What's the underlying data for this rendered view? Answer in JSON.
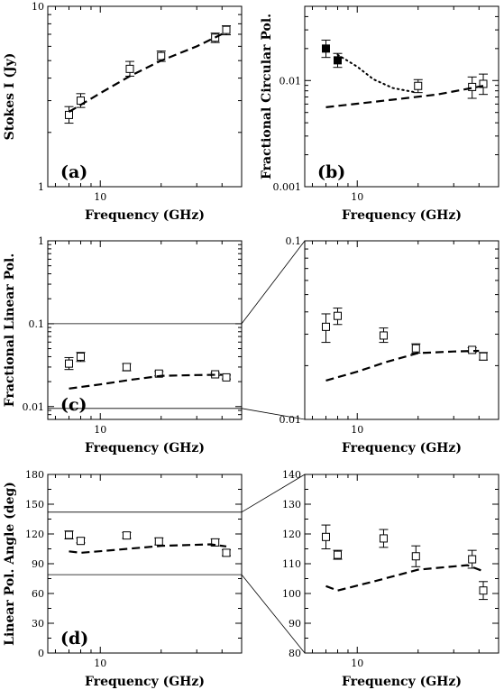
{
  "chart_data": [
    {
      "id": "a",
      "type": "scatter",
      "panel_label": "(a)",
      "xlabel": "Frequency (GHz)",
      "ylabel": "Stokes I (Jy)",
      "xscale": "log",
      "yscale": "log",
      "xlim": [
        5.5,
        50
      ],
      "ylim": [
        1,
        10
      ],
      "x_ticks": [
        {
          "value": 10,
          "label": "10"
        }
      ],
      "y_ticks": [
        {
          "value": 1,
          "label": "1"
        },
        {
          "value": 10,
          "label": "10"
        }
      ],
      "series": [
        {
          "style": "open-square-errorbar",
          "points": [
            {
              "x": 7,
              "y": 2.5,
              "lo": 2.25,
              "hi": 2.78
            },
            {
              "x": 8,
              "y": 3.0,
              "lo": 2.75,
              "hi": 3.28
            },
            {
              "x": 14,
              "y": 4.5,
              "lo": 4.1,
              "hi": 4.95
            },
            {
              "x": 20,
              "y": 5.3,
              "lo": 4.95,
              "hi": 5.65
            },
            {
              "x": 37,
              "y": 6.7,
              "lo": 6.3,
              "hi": 7.1
            },
            {
              "x": 42,
              "y": 7.4,
              "lo": 6.95,
              "hi": 7.8
            }
          ]
        },
        {
          "style": "dashed-line",
          "points": [
            {
              "x": 7,
              "y": 2.6
            },
            {
              "x": 10,
              "y": 3.3
            },
            {
              "x": 14,
              "y": 4.1
            },
            {
              "x": 20,
              "y": 5.0
            },
            {
              "x": 30,
              "y": 6.0
            },
            {
              "x": 42,
              "y": 7.2
            }
          ]
        }
      ]
    },
    {
      "id": "b",
      "type": "scatter",
      "panel_label": "(b)",
      "xlabel": "Frequency (GHz)",
      "ylabel": "Fractional Circular Pol.",
      "xscale": "log",
      "yscale": "log",
      "xlim": [
        5.5,
        50
      ],
      "ylim": [
        0.001,
        0.05
      ],
      "x_ticks": [
        {
          "value": 10,
          "label": "10"
        }
      ],
      "y_ticks": [
        {
          "value": 0.001,
          "label": "0.001"
        },
        {
          "value": 0.01,
          "label": "0.01"
        }
      ],
      "series": [
        {
          "style": "filled-square-errorbar",
          "points": [
            {
              "x": 7,
              "y": 0.02,
              "lo": 0.0165,
              "hi": 0.024
            },
            {
              "x": 8,
              "y": 0.0155,
              "lo": 0.0133,
              "hi": 0.018
            }
          ]
        },
        {
          "style": "open-square-errorbar",
          "points": [
            {
              "x": 20,
              "y": 0.0089,
              "lo": 0.0077,
              "hi": 0.0102
            },
            {
              "x": 37,
              "y": 0.0087,
              "lo": 0.0068,
              "hi": 0.0108
            },
            {
              "x": 42,
              "y": 0.0093,
              "lo": 0.0074,
              "hi": 0.0115
            }
          ]
        },
        {
          "style": "dotted-line",
          "points": [
            {
              "x": 8,
              "y": 0.0175
            },
            {
              "x": 10,
              "y": 0.0135
            },
            {
              "x": 12,
              "y": 0.0103
            },
            {
              "x": 15,
              "y": 0.0085
            },
            {
              "x": 19,
              "y": 0.0078
            }
          ]
        },
        {
          "style": "dashed-line",
          "points": [
            {
              "x": 7,
              "y": 0.0056
            },
            {
              "x": 15,
              "y": 0.0066
            },
            {
              "x": 25,
              "y": 0.0074
            },
            {
              "x": 42,
              "y": 0.0089
            }
          ]
        }
      ]
    },
    {
      "id": "c",
      "type": "scatter",
      "panel_label": "(c)",
      "xlabel": "Frequency (GHz)",
      "ylabel": "Fractional Linear Pol.",
      "xscale": "log",
      "yscale": "log",
      "xlim": [
        5.5,
        50
      ],
      "ylim": [
        0.007,
        1
      ],
      "x_ticks": [
        {
          "value": 10,
          "label": "10"
        }
      ],
      "y_ticks": [
        {
          "value": 0.01,
          "label": "0.01"
        },
        {
          "value": 0.1,
          "label": "0.1"
        },
        {
          "value": 1,
          "label": "1"
        }
      ],
      "zoom_band": [
        0.0095,
        0.1
      ],
      "series": [
        {
          "style": "open-square-errorbar",
          "points": [
            {
              "x": 7,
              "y": 0.033,
              "lo": 0.028,
              "hi": 0.039
            },
            {
              "x": 8,
              "y": 0.04,
              "lo": 0.035,
              "hi": 0.045
            },
            {
              "x": 13.5,
              "y": 0.03,
              "lo": 0.027,
              "hi": 0.033
            },
            {
              "x": 19.5,
              "y": 0.025,
              "lo": 0.0235,
              "hi": 0.0265
            },
            {
              "x": 37,
              "y": 0.0245,
              "lo": 0.0235,
              "hi": 0.0255
            },
            {
              "x": 42,
              "y": 0.0225,
              "lo": 0.0215,
              "hi": 0.024
            }
          ]
        },
        {
          "style": "dashed-line",
          "points": [
            {
              "x": 7,
              "y": 0.0165
            },
            {
              "x": 10,
              "y": 0.0185
            },
            {
              "x": 14,
              "y": 0.021
            },
            {
              "x": 20,
              "y": 0.0235
            },
            {
              "x": 30,
              "y": 0.024
            },
            {
              "x": 40,
              "y": 0.0242
            }
          ]
        }
      ]
    },
    {
      "id": "c-zoom",
      "type": "scatter",
      "panel_label": "",
      "xlabel": "Frequency (GHz)",
      "ylabel": "",
      "xscale": "log",
      "yscale": "log",
      "xlim": [
        5.5,
        50
      ],
      "ylim": [
        0.01,
        0.1
      ],
      "x_ticks": [
        {
          "value": 10,
          "label": "10"
        }
      ],
      "y_ticks": [
        {
          "value": 0.01,
          "label": "0.01"
        },
        {
          "value": 0.1,
          "label": "0.1"
        }
      ],
      "series": [
        {
          "style": "open-square-errorbar",
          "points": [
            {
              "x": 7,
              "y": 0.033,
              "lo": 0.027,
              "hi": 0.039
            },
            {
              "x": 8,
              "y": 0.038,
              "lo": 0.034,
              "hi": 0.042
            },
            {
              "x": 13.5,
              "y": 0.0295,
              "lo": 0.027,
              "hi": 0.0325
            },
            {
              "x": 19.5,
              "y": 0.025,
              "lo": 0.0235,
              "hi": 0.0265
            },
            {
              "x": 37,
              "y": 0.0245,
              "lo": 0.0238,
              "hi": 0.0252
            },
            {
              "x": 42,
              "y": 0.0225,
              "lo": 0.0215,
              "hi": 0.0237
            }
          ]
        },
        {
          "style": "dashed-line",
          "points": [
            {
              "x": 7,
              "y": 0.0165
            },
            {
              "x": 10,
              "y": 0.0185
            },
            {
              "x": 14,
              "y": 0.021
            },
            {
              "x": 20,
              "y": 0.0235
            },
            {
              "x": 30,
              "y": 0.024
            },
            {
              "x": 40,
              "y": 0.0242
            }
          ]
        }
      ]
    },
    {
      "id": "d",
      "type": "scatter",
      "panel_label": "(d)",
      "xlabel": "Frequency (GHz)",
      "ylabel": "Linear Pol. Angle (deg)",
      "xscale": "log",
      "yscale": "linear",
      "xlim": [
        5.5,
        50
      ],
      "ylim": [
        0,
        180
      ],
      "x_ticks": [
        {
          "value": 10,
          "label": "10"
        }
      ],
      "y_ticks": [
        {
          "value": 0,
          "label": "0"
        },
        {
          "value": 30,
          "label": "30"
        },
        {
          "value": 60,
          "label": "60"
        },
        {
          "value": 90,
          "label": "90"
        },
        {
          "value": 120,
          "label": "120"
        },
        {
          "value": 150,
          "label": "150"
        },
        {
          "value": 180,
          "label": "180"
        }
      ],
      "zoom_band": [
        79,
        142
      ],
      "series": [
        {
          "style": "open-square-errorbar",
          "points": [
            {
              "x": 7,
              "y": 119,
              "lo": 115,
              "hi": 123
            },
            {
              "x": 8,
              "y": 113,
              "lo": 111,
              "hi": 116
            },
            {
              "x": 13.5,
              "y": 118.5,
              "lo": 115.5,
              "hi": 121.5
            },
            {
              "x": 19.5,
              "y": 112.5,
              "lo": 109,
              "hi": 116
            },
            {
              "x": 37,
              "y": 111.5,
              "lo": 108,
              "hi": 115
            },
            {
              "x": 42,
              "y": 101,
              "lo": 98,
              "hi": 104
            }
          ]
        },
        {
          "style": "dashed-line",
          "points": [
            {
              "x": 7,
              "y": 102.5
            },
            {
              "x": 8,
              "y": 101
            },
            {
              "x": 12,
              "y": 104
            },
            {
              "x": 20,
              "y": 108
            },
            {
              "x": 35,
              "y": 109.5
            },
            {
              "x": 42,
              "y": 107.5
            }
          ]
        }
      ]
    },
    {
      "id": "d-zoom",
      "type": "scatter",
      "panel_label": "",
      "xlabel": "Frequency (GHz)",
      "ylabel": "",
      "xscale": "log",
      "yscale": "linear",
      "xlim": [
        5.5,
        50
      ],
      "ylim": [
        80,
        140
      ],
      "x_ticks": [
        {
          "value": 10,
          "label": "10"
        }
      ],
      "y_ticks": [
        {
          "value": 80,
          "label": "80"
        },
        {
          "value": 90,
          "label": "90"
        },
        {
          "value": 100,
          "label": "100"
        },
        {
          "value": 110,
          "label": "110"
        },
        {
          "value": 120,
          "label": "120"
        },
        {
          "value": 130,
          "label": "130"
        },
        {
          "value": 140,
          "label": "140"
        }
      ],
      "series": [
        {
          "style": "open-square-errorbar",
          "points": [
            {
              "x": 7,
              "y": 119,
              "lo": 115,
              "hi": 123
            },
            {
              "x": 8,
              "y": 113,
              "lo": 111.5,
              "hi": 114.5
            },
            {
              "x": 13.5,
              "y": 118.5,
              "lo": 115.5,
              "hi": 121.5
            },
            {
              "x": 19.5,
              "y": 112.5,
              "lo": 109,
              "hi": 116
            },
            {
              "x": 37,
              "y": 111.5,
              "lo": 108.5,
              "hi": 114.5
            },
            {
              "x": 42,
              "y": 101,
              "lo": 98,
              "hi": 104
            }
          ]
        },
        {
          "style": "dashed-line",
          "points": [
            {
              "x": 7,
              "y": 102.5
            },
            {
              "x": 8,
              "y": 101
            },
            {
              "x": 12,
              "y": 104
            },
            {
              "x": 20,
              "y": 108
            },
            {
              "x": 35,
              "y": 109.5
            },
            {
              "x": 42,
              "y": 107.5
            }
          ]
        }
      ]
    }
  ]
}
